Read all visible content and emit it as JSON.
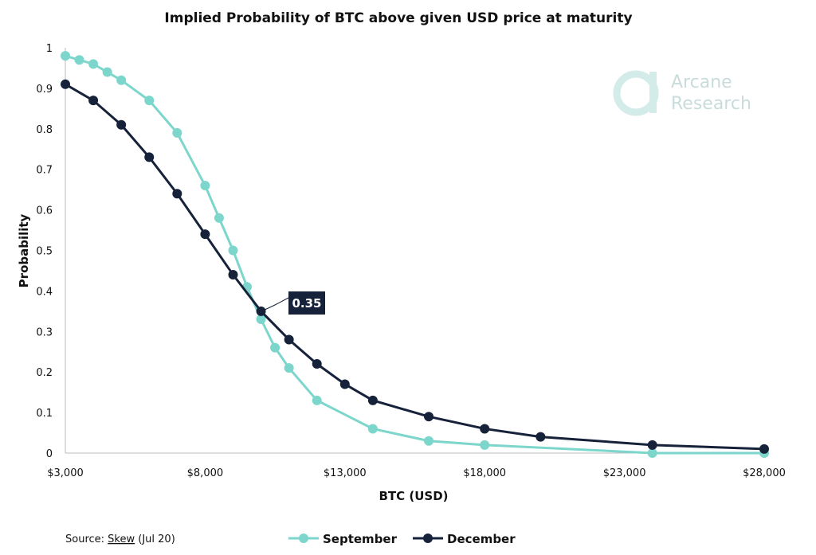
{
  "chart_data": {
    "type": "line",
    "title": "Implied Probability of BTC above given USD price at maturity",
    "xlabel": "BTC (USD)",
    "ylabel": "Probability",
    "xlim": [
      3000,
      28000
    ],
    "ylim": [
      0,
      1
    ],
    "x_ticks": [
      3000,
      8000,
      13000,
      18000,
      23000,
      28000
    ],
    "x_tick_labels": [
      "$3,000",
      "$8,000",
      "$13,000",
      "$18,000",
      "$23,000",
      "$28,000"
    ],
    "y_ticks": [
      0,
      0.1,
      0.2,
      0.3,
      0.4,
      0.5,
      0.6,
      0.7,
      0.8,
      0.9,
      1
    ],
    "y_tick_labels": [
      "0",
      "0.1",
      "0.2",
      "0.3",
      "0.4",
      "0.5",
      "0.6",
      "0.7",
      "0.8",
      "0.9",
      "1"
    ],
    "grid": false,
    "legend_position": "bottom",
    "series": [
      {
        "name": "September",
        "color": "#7dd6cc",
        "x": [
          3000,
          3500,
          4000,
          4500,
          5000,
          6000,
          7000,
          8000,
          8500,
          9000,
          9500,
          10000,
          10500,
          11000,
          12000,
          14000,
          16000,
          18000,
          24000,
          28000
        ],
        "y": [
          0.98,
          0.97,
          0.96,
          0.94,
          0.92,
          0.87,
          0.79,
          0.66,
          0.58,
          0.5,
          0.41,
          0.33,
          0.26,
          0.21,
          0.13,
          0.06,
          0.03,
          0.02,
          0.0,
          0.0
        ]
      },
      {
        "name": "December",
        "color": "#16213a",
        "x": [
          3000,
          4000,
          5000,
          6000,
          7000,
          8000,
          9000,
          10000,
          11000,
          12000,
          13000,
          14000,
          16000,
          18000,
          20000,
          24000,
          28000
        ],
        "y": [
          0.91,
          0.87,
          0.81,
          0.73,
          0.64,
          0.54,
          0.44,
          0.35,
          0.28,
          0.22,
          0.17,
          0.13,
          0.09,
          0.06,
          0.04,
          0.02,
          0.01
        ]
      }
    ],
    "annotations": [
      {
        "text": "0.35",
        "series": "December",
        "x": 10000,
        "y": 0.35
      }
    ]
  },
  "source": {
    "prefix": "Source: ",
    "link": "Skew",
    "suffix": " (Jul 20)"
  },
  "logo": {
    "line1": "Arcane",
    "line2": "Research"
  }
}
